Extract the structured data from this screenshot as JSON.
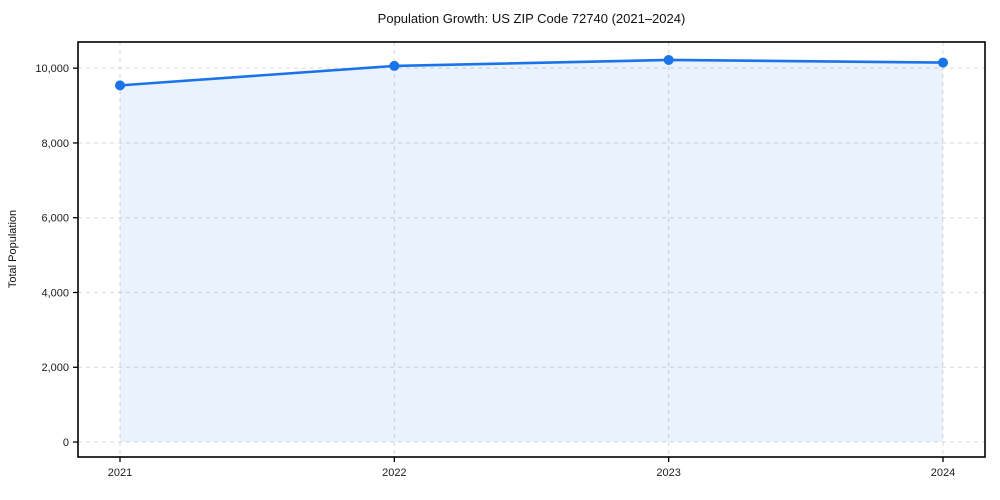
{
  "chart_data": {
    "type": "area",
    "title": "Population Growth: US ZIP Code 72740 (2021–2024)",
    "xlabel": "",
    "ylabel": "Total Population",
    "categories": [
      "2021",
      "2022",
      "2023",
      "2024"
    ],
    "series": [
      {
        "name": "Total Population",
        "values": [
          9540,
          10060,
          10220,
          10150
        ]
      }
    ],
    "yticks": [
      0,
      2000,
      4000,
      6000,
      8000,
      10000
    ],
    "ytick_labels": [
      "0",
      "2,000",
      "4,000",
      "6,000",
      "8,000",
      "10,000"
    ],
    "ylim": [
      -400,
      10700
    ],
    "grid": "on",
    "grid_style": "dashed",
    "legend": "none",
    "colors": {
      "line": "#1a73e8",
      "marker": "#1a73e8",
      "fill": "#1a73e8",
      "fill_opacity": 0.09,
      "grid": "#d9d9d9",
      "frame": "#000000",
      "text": "#1c1c1c"
    }
  }
}
